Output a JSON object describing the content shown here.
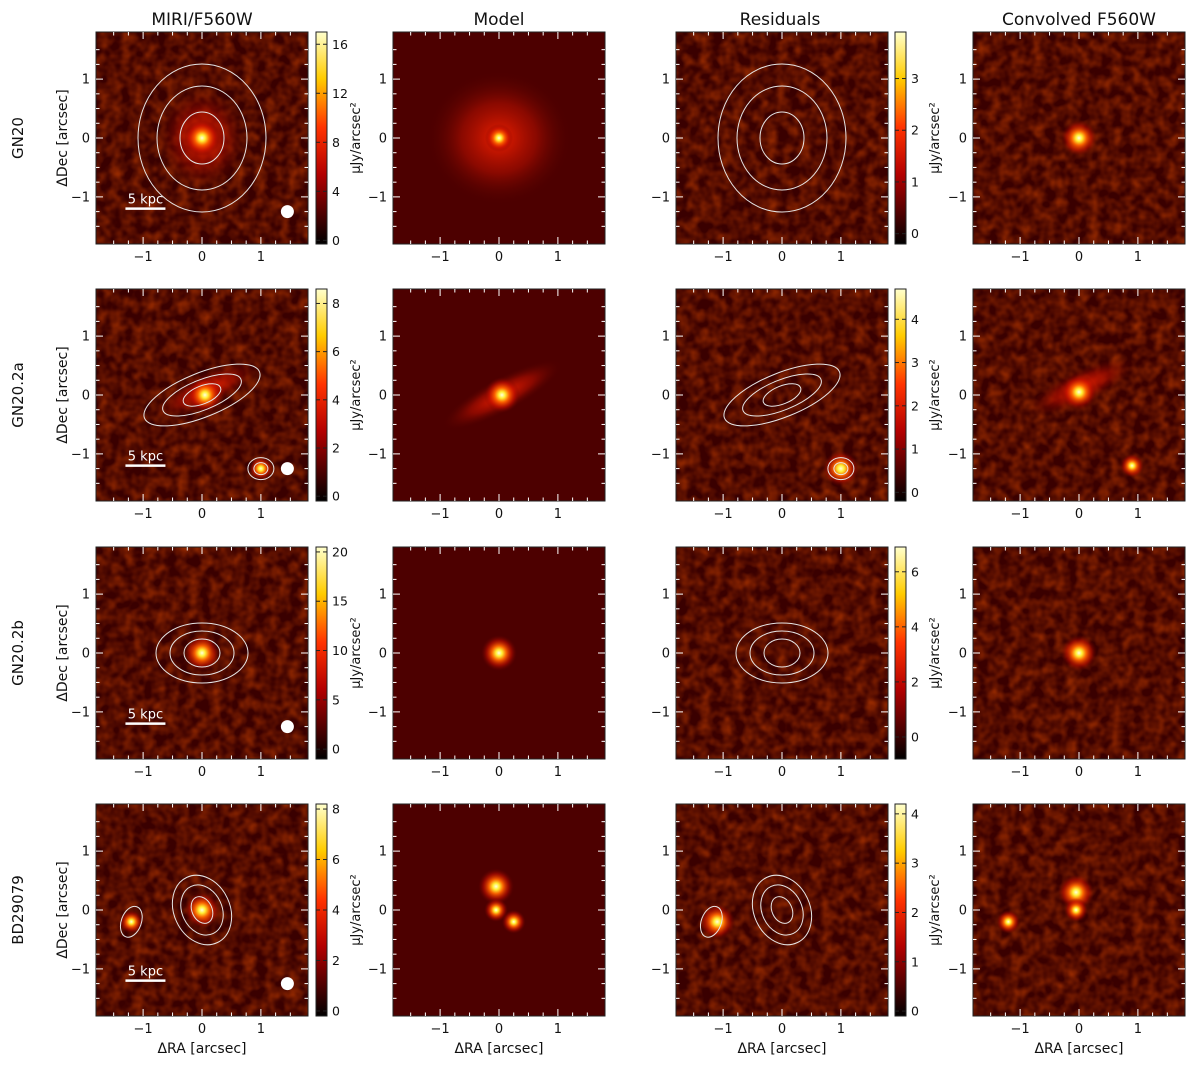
{
  "figure": {
    "column_titles": [
      "MIRI/F560W",
      "Model",
      "Residuals",
      "Convolved F560W"
    ],
    "row_labels": [
      "GN20",
      "GN20.2a",
      "GN20.2b",
      "BD29079"
    ],
    "ylabel": "ΔDec [arcsec]",
    "xlabel": "ΔRA [arcsec]",
    "colorbar_label": "μJy/arcsec²",
    "scale_bar_label": "5 kpc",
    "colormap": "hot",
    "colors": {
      "cmap_low": "#000000",
      "cmap_mid": "#e61a00",
      "cmap_high": "#ffff00",
      "contour": "#e6e6e6"
    }
  },
  "chart_data": [
    {
      "type": "heatmap",
      "panel": "GN20 MIRI/F560W",
      "xlim": [
        -1.8,
        1.8
      ],
      "ylim": [
        -1.8,
        1.8
      ],
      "xticks": [
        -1,
        0,
        1
      ],
      "yticks": [
        -1,
        0,
        1
      ],
      "colorbar_ticks": [
        0,
        4,
        8,
        12,
        16
      ],
      "colorbar_range": [
        -0.3,
        17
      ],
      "contours": true,
      "scale_bar": "5 kpc",
      "psf_marker": true,
      "sources": [
        {
          "x": 0.0,
          "y": 0.0,
          "peak": 16
        }
      ]
    },
    {
      "type": "heatmap",
      "panel": "GN20 Model",
      "xlim": [
        -1.8,
        1.8
      ],
      "ylim": [
        -1.8,
        1.8
      ],
      "xticks": [
        -1,
        0,
        1
      ],
      "yticks": [
        -1,
        0,
        1
      ],
      "sources": [
        {
          "x": 0.0,
          "y": 0.0
        }
      ]
    },
    {
      "type": "heatmap",
      "panel": "GN20 Residuals",
      "xlim": [
        -1.8,
        1.8
      ],
      "ylim": [
        -1.8,
        1.8
      ],
      "xticks": [
        -1,
        0,
        1
      ],
      "yticks": [
        -1,
        0,
        1
      ],
      "colorbar_ticks": [
        0,
        1,
        2,
        3
      ],
      "colorbar_range": [
        -0.2,
        3.9
      ],
      "contours": true
    },
    {
      "type": "heatmap",
      "panel": "GN20 Convolved F560W",
      "xlim": [
        -1.8,
        1.8
      ],
      "ylim": [
        -1.8,
        1.8
      ],
      "xticks": [
        -1,
        0,
        1
      ],
      "yticks": [
        -1,
        0,
        1
      ],
      "sources": [
        {
          "x": 0.0,
          "y": 0.0
        }
      ]
    },
    {
      "type": "heatmap",
      "panel": "GN20.2a MIRI/F560W",
      "xlim": [
        -1.8,
        1.8
      ],
      "ylim": [
        -1.8,
        1.8
      ],
      "xticks": [
        -1,
        0,
        1
      ],
      "yticks": [
        -1,
        0,
        1
      ],
      "colorbar_ticks": [
        0,
        2,
        4,
        6,
        8
      ],
      "colorbar_range": [
        -0.2,
        8.6
      ],
      "contours": true,
      "scale_bar": "5 kpc",
      "psf_marker": true,
      "sources": [
        {
          "x": 0.05,
          "y": 0.0
        },
        {
          "x": 1.0,
          "y": -1.25
        }
      ]
    },
    {
      "type": "heatmap",
      "panel": "GN20.2a Model",
      "xlim": [
        -1.8,
        1.8
      ],
      "ylim": [
        -1.8,
        1.8
      ],
      "xticks": [
        -1,
        0,
        1
      ],
      "yticks": [
        -1,
        0,
        1
      ],
      "sources": [
        {
          "x": 0.05,
          "y": 0.0
        }
      ]
    },
    {
      "type": "heatmap",
      "panel": "GN20.2a Residuals",
      "xlim": [
        -1.8,
        1.8
      ],
      "ylim": [
        -1.8,
        1.8
      ],
      "xticks": [
        -1,
        0,
        1
      ],
      "yticks": [
        -1,
        0,
        1
      ],
      "colorbar_ticks": [
        0,
        1,
        2,
        3,
        4
      ],
      "colorbar_range": [
        -0.2,
        4.7
      ],
      "contours": true,
      "sources": [
        {
          "x": 1.0,
          "y": -1.25
        }
      ]
    },
    {
      "type": "heatmap",
      "panel": "GN20.2a Convolved F560W",
      "xlim": [
        -1.8,
        1.8
      ],
      "ylim": [
        -1.8,
        1.8
      ],
      "xticks": [
        -1,
        0,
        1
      ],
      "yticks": [
        -1,
        0,
        1
      ],
      "sources": [
        {
          "x": 0.0,
          "y": 0.05
        },
        {
          "x": 0.9,
          "y": -1.2
        }
      ]
    },
    {
      "type": "heatmap",
      "panel": "GN20.2b MIRI/F560W",
      "xlim": [
        -1.8,
        1.8
      ],
      "ylim": [
        -1.8,
        1.8
      ],
      "xticks": [
        -1,
        0,
        1
      ],
      "yticks": [
        -1,
        0,
        1
      ],
      "colorbar_ticks": [
        0,
        5,
        10,
        15,
        20
      ],
      "colorbar_range": [
        -1,
        20.5
      ],
      "contours": true,
      "scale_bar": "5 kpc",
      "psf_marker": true,
      "sources": [
        {
          "x": 0.0,
          "y": 0.0
        }
      ]
    },
    {
      "type": "heatmap",
      "panel": "GN20.2b Model",
      "xlim": [
        -1.8,
        1.8
      ],
      "ylim": [
        -1.8,
        1.8
      ],
      "xticks": [
        -1,
        0,
        1
      ],
      "yticks": [
        -1,
        0,
        1
      ],
      "sources": [
        {
          "x": 0.0,
          "y": 0.0
        }
      ]
    },
    {
      "type": "heatmap",
      "panel": "GN20.2b Residuals",
      "xlim": [
        -1.8,
        1.8
      ],
      "ylim": [
        -1.8,
        1.8
      ],
      "xticks": [
        -1,
        0,
        1
      ],
      "yticks": [
        -1,
        0,
        1
      ],
      "colorbar_ticks": [
        0,
        2,
        4,
        6
      ],
      "colorbar_range": [
        -0.8,
        6.9
      ],
      "contours": true
    },
    {
      "type": "heatmap",
      "panel": "GN20.2b Convolved F560W",
      "xlim": [
        -1.8,
        1.8
      ],
      "ylim": [
        -1.8,
        1.8
      ],
      "xticks": [
        -1,
        0,
        1
      ],
      "yticks": [
        -1,
        0,
        1
      ],
      "sources": [
        {
          "x": 0.0,
          "y": 0.0
        }
      ]
    },
    {
      "type": "heatmap",
      "panel": "BD29079 MIRI/F560W",
      "xlim": [
        -1.8,
        1.8
      ],
      "ylim": [
        -1.8,
        1.8
      ],
      "xticks": [
        -1,
        0,
        1
      ],
      "yticks": [
        -1,
        0,
        1
      ],
      "colorbar_ticks": [
        0,
        2,
        4,
        6,
        8
      ],
      "colorbar_range": [
        -0.2,
        8.2
      ],
      "contours": true,
      "scale_bar": "5 kpc",
      "psf_marker": true,
      "sources": [
        {
          "x": 0.0,
          "y": 0.0
        },
        {
          "x": -1.2,
          "y": -0.2
        }
      ]
    },
    {
      "type": "heatmap",
      "panel": "BD29079 Model",
      "xlim": [
        -1.8,
        1.8
      ],
      "ylim": [
        -1.8,
        1.8
      ],
      "xticks": [
        -1,
        0,
        1
      ],
      "yticks": [
        -1,
        0,
        1
      ],
      "sources": [
        {
          "x": -0.05,
          "y": 0.4
        },
        {
          "x": -0.05,
          "y": 0.0
        },
        {
          "x": 0.25,
          "y": -0.2
        }
      ]
    },
    {
      "type": "heatmap",
      "panel": "BD29079 Residuals",
      "xlim": [
        -1.8,
        1.8
      ],
      "ylim": [
        -1.8,
        1.8
      ],
      "xticks": [
        -1,
        0,
        1
      ],
      "yticks": [
        -1,
        0,
        1
      ],
      "colorbar_ticks": [
        0,
        1,
        2,
        3,
        4
      ],
      "colorbar_range": [
        -0.1,
        4.2
      ],
      "contours": true,
      "sources": [
        {
          "x": -1.1,
          "y": -0.2
        }
      ]
    },
    {
      "type": "heatmap",
      "panel": "BD29079 Convolved F560W",
      "xlim": [
        -1.8,
        1.8
      ],
      "ylim": [
        -1.8,
        1.8
      ],
      "xticks": [
        -1,
        0,
        1
      ],
      "yticks": [
        -1,
        0,
        1
      ],
      "sources": [
        {
          "x": -0.05,
          "y": 0.3
        },
        {
          "x": -0.05,
          "y": 0.0
        },
        {
          "x": -1.2,
          "y": -0.2
        }
      ]
    }
  ]
}
